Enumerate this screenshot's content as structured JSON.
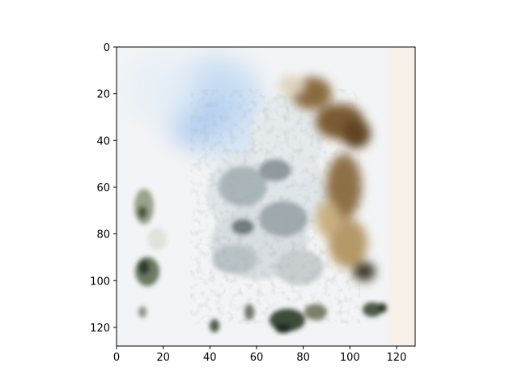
{
  "chart_data": {
    "type": "heatmap",
    "title": "",
    "xlabel": "",
    "ylabel": "",
    "xlim": [
      0,
      128
    ],
    "ylim": [
      128,
      0
    ],
    "y_inverted": true,
    "grid": false,
    "x_ticks": [
      0,
      20,
      40,
      60,
      80,
      100,
      120
    ],
    "y_ticks": [
      0,
      20,
      40,
      60,
      80,
      100,
      120
    ],
    "x_tick_labels": [
      "0",
      "20",
      "40",
      "60",
      "80",
      "100",
      "120"
    ],
    "y_tick_labels": [
      "0",
      "20",
      "40",
      "60",
      "80",
      "100",
      "120"
    ],
    "image_size": [
      128,
      128
    ],
    "image_content": "GAN-generated sample: pale white background with a bluish haze at upper-left, a dark brown furry shape along the right side, grey-white textured mass in the center, and small dark green blotches at lower-left and bottom.",
    "colors": {
      "background": "#f3f4f5",
      "blue_haze": "#b6d2f0",
      "brown": "#7a5a30",
      "tan": "#c9ae80",
      "grey": "#9aa4a9",
      "dark_green": "#2e3a2c",
      "axis": "#000000"
    }
  }
}
